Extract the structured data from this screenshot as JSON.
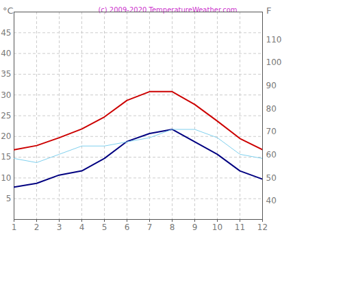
{
  "chart_data": {
    "type": "line",
    "title": "(c) 2009-2020 TemperatureWeather.com",
    "ylabel": "°C",
    "y2label": "F",
    "x": [
      1,
      2,
      3,
      4,
      5,
      6,
      7,
      8,
      9,
      10,
      11,
      12
    ],
    "xlim": [
      1,
      12
    ],
    "xticks": [
      1,
      2,
      3,
      4,
      5,
      6,
      7,
      8,
      9,
      10,
      11,
      12
    ],
    "ylim": [
      0,
      50
    ],
    "yticks": [
      5,
      10,
      15,
      20,
      25,
      30,
      35,
      40,
      45
    ],
    "y2lim": [
      32,
      122
    ],
    "y2ticks": [
      40,
      50,
      60,
      70,
      80,
      90,
      100,
      110
    ],
    "grid": true,
    "series": [
      {
        "color": "#cc0000",
        "values": [
          16.8,
          17.8,
          19.7,
          21.8,
          24.7,
          28.7,
          30.8,
          30.8,
          27.7,
          23.7,
          19.5,
          16.8
        ]
      },
      {
        "color": "#000080",
        "values": [
          7.8,
          8.7,
          10.7,
          11.7,
          14.7,
          18.8,
          20.7,
          21.7,
          18.7,
          15.7,
          11.7,
          9.7
        ]
      },
      {
        "color": "#7fd0ee",
        "values": [
          14.7,
          13.7,
          15.7,
          17.7,
          17.7,
          18.7,
          19.7,
          21.7,
          21.7,
          19.7,
          15.7,
          14.7
        ],
        "axis": "y"
      }
    ]
  }
}
